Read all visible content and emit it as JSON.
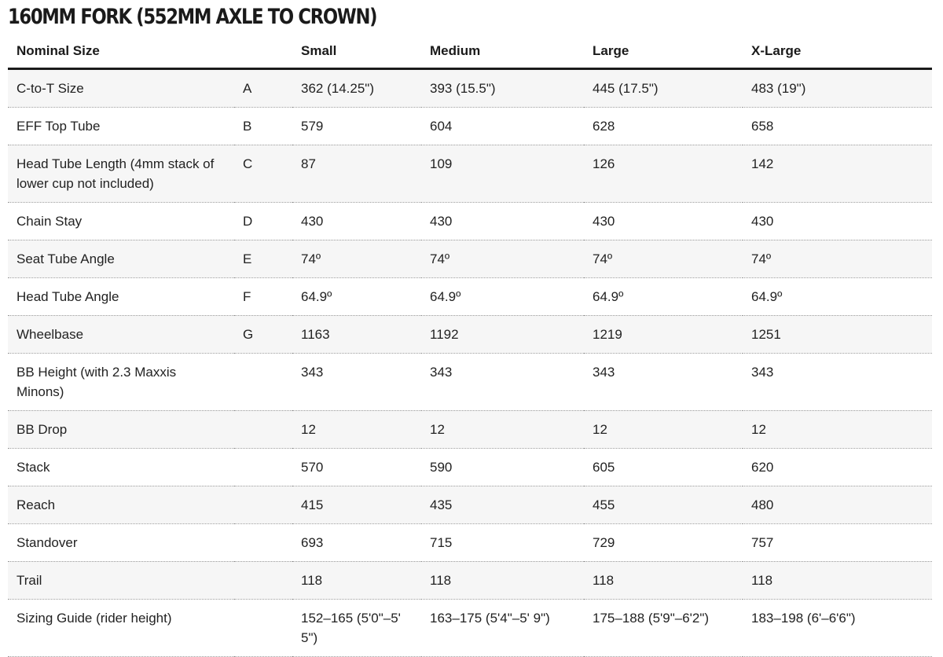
{
  "title": "160MM FORK (552MM AXLE TO CROWN)",
  "table": {
    "headers": [
      "Nominal Size",
      "",
      "Small",
      "Medium",
      "Large",
      "X-Large"
    ],
    "rows": [
      [
        "C-to-T Size",
        "A",
        "362 (14.25\")",
        "393 (15.5\")",
        "445 (17.5\")",
        "483 (19\")"
      ],
      [
        "EFF Top Tube",
        "B",
        "579",
        "604",
        "628",
        "658"
      ],
      [
        "Head Tube Length (4mm stack of lower cup not included)",
        "C",
        "87",
        "109",
        "126",
        "142"
      ],
      [
        "Chain Stay",
        "D",
        "430",
        "430",
        "430",
        "430"
      ],
      [
        "Seat Tube Angle",
        "E",
        "74º",
        "74º",
        "74º",
        "74º"
      ],
      [
        "Head Tube Angle",
        "F",
        "64.9º",
        "64.9º",
        "64.9º",
        "64.9º"
      ],
      [
        "Wheelbase",
        "G",
        "1163",
        "1192",
        "1219",
        "1251"
      ],
      [
        "BB Height (with 2.3 Maxxis Minons)",
        "",
        "343",
        "343",
        "343",
        "343"
      ],
      [
        "BB Drop",
        "",
        "12",
        "12",
        "12",
        "12"
      ],
      [
        "Stack",
        "",
        "570",
        "590",
        "605",
        "620"
      ],
      [
        "Reach",
        "",
        "415",
        "435",
        "455",
        "480"
      ],
      [
        "Standover",
        "",
        "693",
        "715",
        "729",
        "757"
      ],
      [
        "Trail",
        "",
        "118",
        "118",
        "118",
        "118"
      ],
      [
        "Sizing Guide (rider height)",
        "",
        "152–165 (5'0\"–5' 5\")",
        "163–175 (5'4\"–5' 9\")",
        "175–188 (5'9\"–6'2\")",
        "183–198 (6'–6'6\")"
      ]
    ]
  }
}
